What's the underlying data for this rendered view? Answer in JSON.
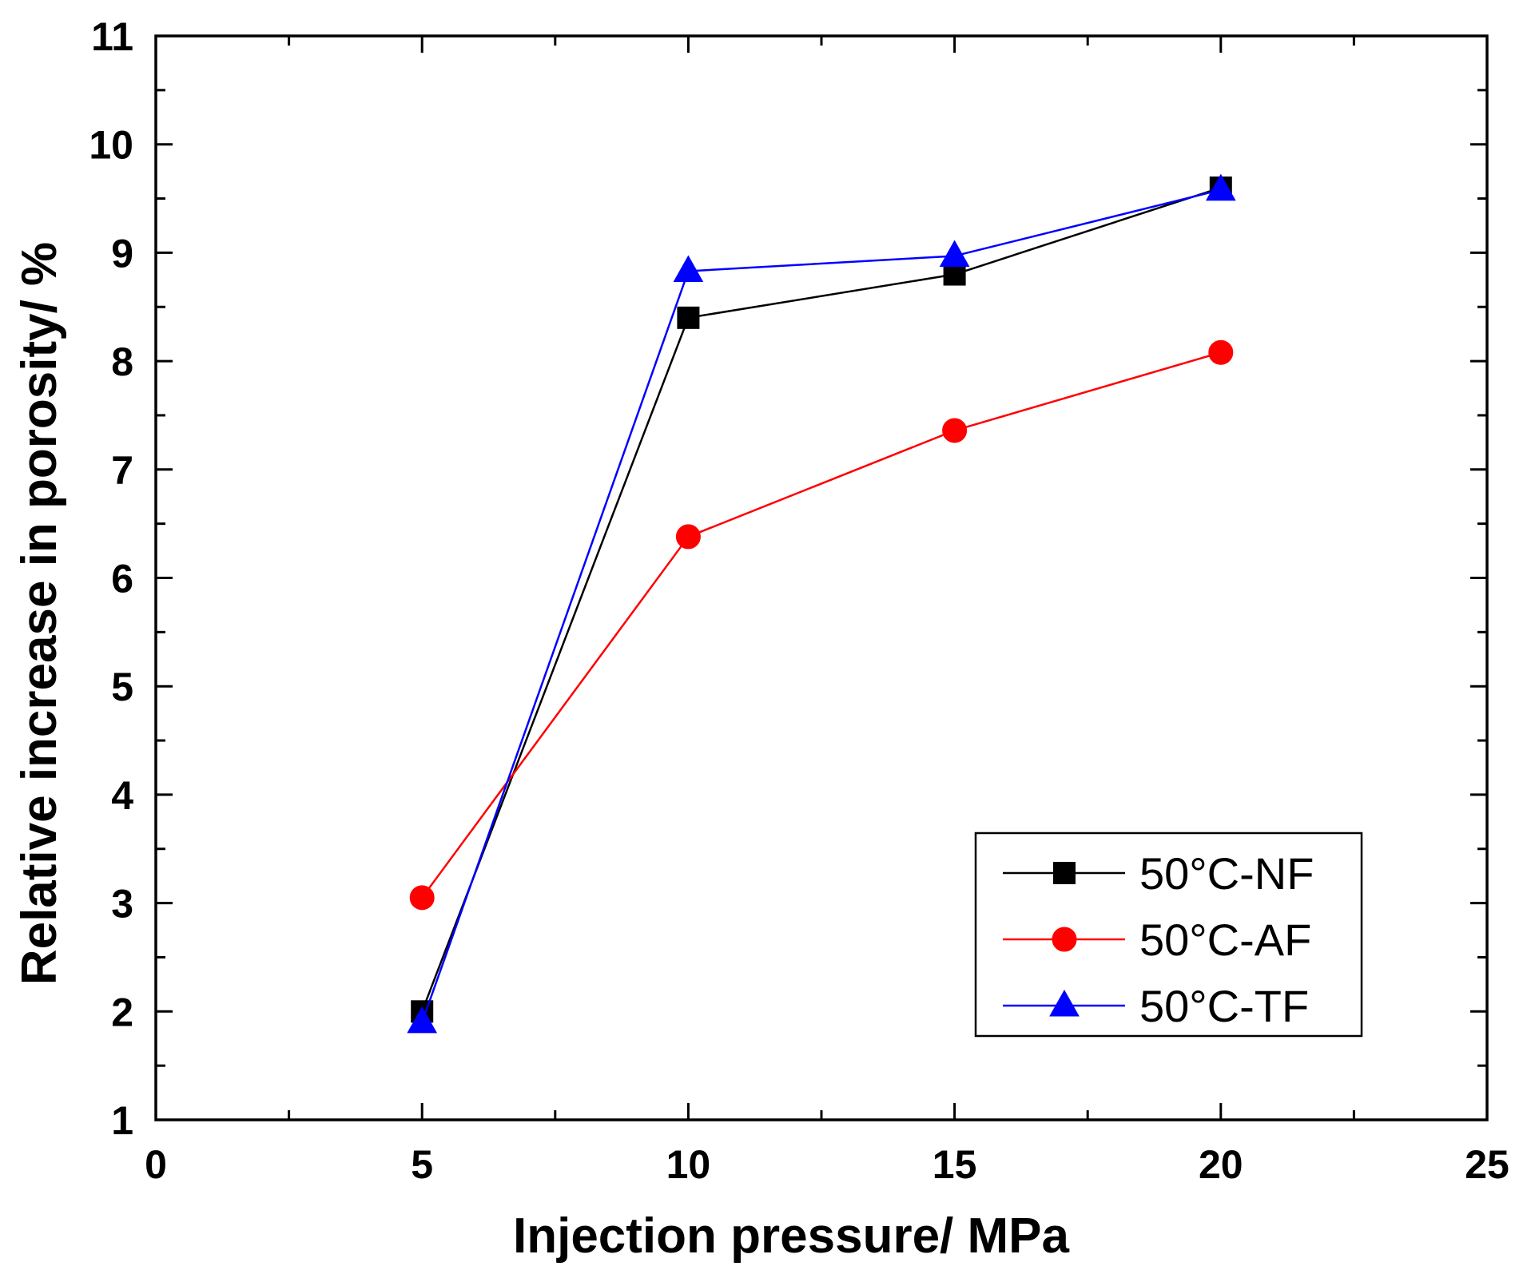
{
  "chart_data": {
    "type": "line",
    "xlabel": "Injection pressure/ MPa",
    "ylabel": "Relative increase in porosity/ %",
    "xlim": [
      0,
      25
    ],
    "ylim": [
      1,
      11
    ],
    "x_ticks": [
      0,
      5,
      10,
      15,
      20,
      25
    ],
    "y_ticks": [
      1,
      2,
      3,
      4,
      5,
      6,
      7,
      8,
      9,
      10,
      11
    ],
    "x_minor_step": 2.5,
    "y_minor_step": 0.5,
    "grid": false,
    "legend_position": "bottom-right",
    "x": [
      5,
      10,
      15,
      20
    ],
    "series": [
      {
        "name": "50°C-NF",
        "marker": "square",
        "color": "#000000",
        "values": [
          2.0,
          8.4,
          8.8,
          9.6
        ]
      },
      {
        "name": "50°C-AF",
        "marker": "circle",
        "color": "#ff0000",
        "values": [
          3.05,
          6.38,
          7.36,
          8.08
        ]
      },
      {
        "name": "50°C-TF",
        "marker": "triangle",
        "color": "#0000ff",
        "values": [
          1.9,
          8.83,
          8.97,
          9.58
        ]
      }
    ]
  }
}
